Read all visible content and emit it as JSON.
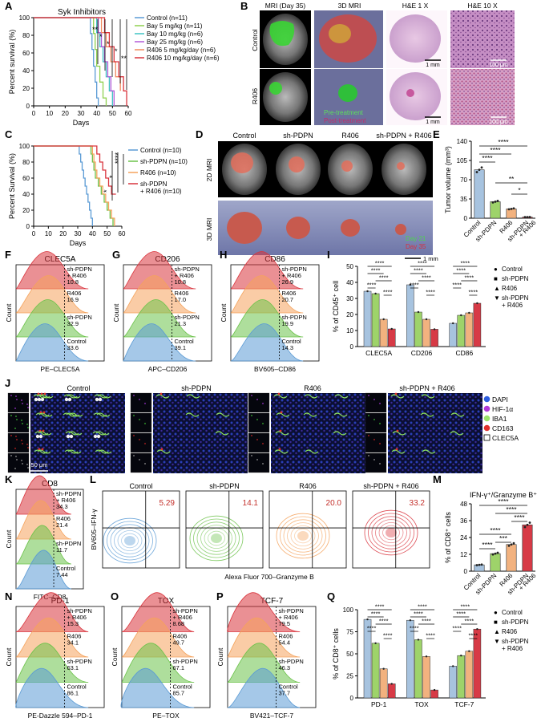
{
  "panels": {
    "A": "A",
    "B": "B",
    "C": "C",
    "D": "D",
    "E": "E",
    "F": "F",
    "G": "G",
    "H": "H",
    "I": "I",
    "J": "J",
    "K": "K",
    "L": "L",
    "M": "M",
    "N": "N",
    "O": "O",
    "P": "P",
    "Q": "Q"
  },
  "colors": {
    "control": "#5b9bd5",
    "sh": "#6cc24a",
    "r406": "#f5a35c",
    "combo": "#d9343d",
    "bay5": "#8fd14f",
    "bay10": "#3fc4c4",
    "bay25": "#b25ad8",
    "r5": "#f08a5d",
    "r10": "#d9343d",
    "bar_control": "#a7c3df",
    "bar_sh": "#9ed36a",
    "bar_r406": "#f2b27f",
    "bar_combo": "#d73a46"
  },
  "B": {
    "cols": [
      "MRI (Day 35)",
      "3D MRI",
      "H&E 1 X",
      "H&E 10 X"
    ],
    "rows": [
      "Control",
      "R406"
    ],
    "legend": [
      "Pre-treatment",
      "Post-treatment"
    ],
    "scale_1mm": "1 mm",
    "scale_100um": "100 μm"
  },
  "D": {
    "cols": [
      "Control",
      "sh-PDPN",
      "R406",
      "sh-PDPN + R406"
    ],
    "rows": [
      "2D MRI",
      "3D MRI"
    ],
    "legend": [
      "Day 21",
      "Day 35"
    ],
    "scale": "1 mm"
  },
  "J": {
    "cols": [
      "Control",
      "sh-PDPN",
      "R406",
      "sh-PDPN + R406"
    ],
    "legend": [
      "DAPI",
      "HIF-1α",
      "IBA1",
      "CD163",
      "CLEC5A"
    ],
    "legend_colors": [
      "#2f5fe0",
      "#b23ad8",
      "#9be36a",
      "#e0302c",
      "#ffffff"
    ],
    "scale": "50 μm"
  },
  "L": {
    "cols": [
      "Control",
      "sh-PDPN",
      "R406",
      "sh-PDPN + R406"
    ],
    "values": [
      "5.29",
      "14.1",
      "20.0",
      "33.2"
    ],
    "ylabel": "BV605–IFN-γ",
    "xlabel": "Alexa Fluor 700–Granzyme B"
  },
  "chart_data": [
    {
      "id": "A",
      "type": "line",
      "title": "Syk Inhibitors",
      "xlabel": "Days",
      "ylabel": "Percent survival (%)",
      "xlim": [
        0,
        60
      ],
      "ylim": [
        0,
        100
      ],
      "xticks": [
        "0",
        "10",
        "20",
        "30",
        "40",
        "50",
        "60"
      ],
      "yticks": [
        "0",
        "20",
        "40",
        "60",
        "80",
        "100"
      ],
      "series": [
        {
          "name": "Control (n=11)",
          "color": "#5b9bd5",
          "points": [
            [
              0,
              100
            ],
            [
              35,
              100
            ],
            [
              36,
              82
            ],
            [
              37,
              64
            ],
            [
              38,
              45
            ],
            [
              39,
              27
            ],
            [
              40,
              9
            ],
            [
              41,
              0
            ]
          ]
        },
        {
          "name": "Bay 5 mg/kg (n=11)",
          "color": "#8fd14f",
          "points": [
            [
              0,
              100
            ],
            [
              37,
              100
            ],
            [
              38,
              82
            ],
            [
              39,
              64
            ],
            [
              40,
              45
            ],
            [
              42,
              27
            ],
            [
              44,
              9
            ],
            [
              46,
              0
            ]
          ]
        },
        {
          "name": "Bay 10 mg/kg (n=6)",
          "color": "#3fc4c4",
          "points": [
            [
              0,
              100
            ],
            [
              38,
              100
            ],
            [
              40,
              83
            ],
            [
              42,
              67
            ],
            [
              44,
              50
            ],
            [
              46,
              33
            ],
            [
              48,
              17
            ],
            [
              50,
              0
            ]
          ]
        },
        {
          "name": "Bay 25 mg/kg (n=6)",
          "color": "#b25ad8",
          "points": [
            [
              0,
              100
            ],
            [
              39,
              100
            ],
            [
              41,
              83
            ],
            [
              43,
              67
            ],
            [
              45,
              50
            ],
            [
              47,
              33
            ],
            [
              49,
              17
            ],
            [
              51,
              0
            ]
          ]
        },
        {
          "name": "R406 5 mg/kg/day (n=6)",
          "color": "#f08a5d",
          "points": [
            [
              0,
              100
            ],
            [
              40,
              100
            ],
            [
              43,
              83
            ],
            [
              46,
              67
            ],
            [
              49,
              50
            ],
            [
              52,
              33
            ],
            [
              55,
              17
            ]
          ]
        },
        {
          "name": "R406 10 mg/kg/day (n=6)",
          "color": "#d9343d",
          "points": [
            [
              0,
              100
            ],
            [
              42,
              100
            ],
            [
              45,
              83
            ],
            [
              48,
              67
            ],
            [
              51,
              50
            ],
            [
              54,
              33
            ],
            [
              57,
              17
            ],
            [
              59,
              0
            ]
          ]
        }
      ],
      "sig": [
        "**",
        "*",
        "*",
        "*",
        "**"
      ]
    },
    {
      "id": "C",
      "type": "line",
      "xlabel": "Days",
      "ylabel": "Percent Survival (%)",
      "xlim": [
        0,
        60
      ],
      "ylim": [
        0,
        100
      ],
      "xticks": [
        "0",
        "10",
        "20",
        "30",
        "40",
        "50",
        "60"
      ],
      "yticks": [
        "0",
        "20",
        "40",
        "60",
        "80",
        "100"
      ],
      "series": [
        {
          "name": "Control (n=10)",
          "color": "#5b9bd5",
          "points": [
            [
              0,
              100
            ],
            [
              30,
              100
            ],
            [
              31,
              90
            ],
            [
              32,
              80
            ],
            [
              33,
              70
            ],
            [
              34,
              60
            ],
            [
              35,
              50
            ],
            [
              36,
              40
            ],
            [
              37,
              30
            ],
            [
              38,
              20
            ],
            [
              39,
              10
            ],
            [
              40,
              0
            ]
          ]
        },
        {
          "name": "sh-PDPN (n=10)",
          "color": "#6cc24a",
          "points": [
            [
              0,
              100
            ],
            [
              38,
              100
            ],
            [
              39,
              90
            ],
            [
              40,
              80
            ],
            [
              41,
              70
            ],
            [
              42,
              60
            ],
            [
              44,
              50
            ],
            [
              46,
              40
            ],
            [
              48,
              30
            ],
            [
              50,
              20
            ],
            [
              52,
              10
            ],
            [
              54,
              0
            ]
          ]
        },
        {
          "name": "R406 (n=10)",
          "color": "#f5a35c",
          "points": [
            [
              0,
              100
            ],
            [
              39,
              100
            ],
            [
              40,
              90
            ],
            [
              41,
              80
            ],
            [
              42,
              70
            ],
            [
              43,
              60
            ],
            [
              45,
              50
            ],
            [
              47,
              40
            ],
            [
              49,
              30
            ],
            [
              51,
              20
            ],
            [
              53,
              10
            ],
            [
              55,
              0
            ]
          ]
        },
        {
          "name": "sh-PDPN + R406 (n=10)",
          "color": "#d9343d",
          "points": [
            [
              0,
              100
            ],
            [
              42,
              100
            ],
            [
              43,
              90
            ],
            [
              45,
              80
            ],
            [
              47,
              70
            ],
            [
              49,
              60
            ],
            [
              51,
              50
            ],
            [
              53,
              40
            ],
            [
              56,
              40
            ]
          ]
        }
      ],
      "sig": [
        "*",
        "*",
        "****"
      ]
    },
    {
      "id": "E",
      "type": "bar",
      "ylabel": "Tumor volume (mm³)",
      "ylim": [
        0,
        140
      ],
      "yticks": [
        "0",
        "35",
        "70",
        "105",
        "140"
      ],
      "categories": [
        "Control",
        "sh-PDPN",
        "R406",
        "sh-PDPN + R406"
      ],
      "values": [
        88,
        30,
        17,
        2
      ],
      "sig": [
        "****",
        "****",
        "****",
        "**",
        "*"
      ]
    },
    {
      "id": "F",
      "type": "area",
      "title": "CLEC5A",
      "xlabel": "PE–CLEC5A",
      "ylabel": "Count",
      "entries": [
        {
          "label": "sh-PDPN + R406",
          "value": "10.8"
        },
        {
          "label": "R406",
          "value": "16.9"
        },
        {
          "label": "sh-PDPN",
          "value": "32.9"
        },
        {
          "label": "Control",
          "value": "33.6"
        }
      ]
    },
    {
      "id": "G",
      "type": "area",
      "title": "CD206",
      "xlabel": "APC–CD206",
      "ylabel": "Count",
      "entries": [
        {
          "label": "sh-PDPN + R406",
          "value": "10.8"
        },
        {
          "label": "R406",
          "value": "17.0"
        },
        {
          "label": "sh-PDPN",
          "value": "21.3"
        },
        {
          "label": "Control",
          "value": "39.1"
        }
      ]
    },
    {
      "id": "H",
      "type": "area",
      "title": "CD86",
      "xlabel": "BV605–CD86",
      "ylabel": "Count",
      "entries": [
        {
          "label": "sh-PDPN + R406",
          "value": "26.9"
        },
        {
          "label": "R406",
          "value": "20.7"
        },
        {
          "label": "sh-PDPN",
          "value": "19.9"
        },
        {
          "label": "Control",
          "value": "14.3"
        }
      ]
    },
    {
      "id": "I",
      "type": "bar",
      "ylabel": "% of CD45⁺ cell",
      "ylim": [
        0,
        50
      ],
      "yticks": [
        "0",
        "10",
        "20",
        "30",
        "40",
        "50"
      ],
      "categories": [
        "CLEC5A",
        "CD206",
        "CD86"
      ],
      "series": [
        {
          "name": "Control",
          "values": [
            34.5,
            38.5,
            14.5
          ]
        },
        {
          "name": "sh-PDPN",
          "values": [
            33,
            21.5,
            19.5
          ]
        },
        {
          "name": "R406",
          "values": [
            17,
            17,
            21
          ]
        },
        {
          "name": "sh-PDPN + R406",
          "values": [
            11,
            10.8,
            27
          ]
        }
      ]
    },
    {
      "id": "K",
      "type": "area",
      "title": "CD8",
      "xlabel": "FITC–CD8",
      "ylabel": "Count",
      "entries": [
        {
          "label": "sh-PDPN + R406",
          "value": "34.3"
        },
        {
          "label": "R406",
          "value": "21.4"
        },
        {
          "label": "sh-PDPN",
          "value": "11.7"
        },
        {
          "label": "Control",
          "value": "7.44"
        }
      ]
    },
    {
      "id": "M",
      "type": "bar",
      "title": "IFN-γ⁺/Granzyme B⁺",
      "ylabel": "% of CD8⁺ cells",
      "ylim": [
        0,
        48
      ],
      "yticks": [
        "0",
        "12",
        "24",
        "36",
        "48"
      ],
      "categories": [
        "Control",
        "sh-PDPN",
        "R406",
        "sh-PDPN + R406"
      ],
      "values": [
        4.5,
        12.5,
        19,
        33
      ],
      "sig": [
        "****",
        "****",
        "****",
        "****",
        "***",
        "****"
      ]
    },
    {
      "id": "N",
      "type": "area",
      "title": "PD-1",
      "xlabel": "PE-Dazzle 594–PD-1",
      "ylabel": "Count",
      "entries": [
        {
          "label": "sh-PDPN + R406",
          "value": "15.3"
        },
        {
          "label": "R406",
          "value": "34.1"
        },
        {
          "label": "sh-PDPN",
          "value": "63.1"
        },
        {
          "label": "Control",
          "value": "86.1"
        }
      ]
    },
    {
      "id": "O",
      "type": "area",
      "title": "TOX",
      "xlabel": "PE–TOX",
      "ylabel": "Count",
      "entries": [
        {
          "label": "sh-PDPN + R406",
          "value": "8.68"
        },
        {
          "label": "R406",
          "value": "49.7"
        },
        {
          "label": "sh-PDPN",
          "value": "67.1"
        },
        {
          "label": "Control",
          "value": "85.7"
        }
      ]
    },
    {
      "id": "P",
      "type": "area",
      "title": "TCF-7",
      "xlabel": "BV421–TCF-7",
      "ylabel": "Count",
      "entries": [
        {
          "label": "sh-PDPN + R406",
          "value": "79.5"
        },
        {
          "label": "R406",
          "value": "54.4"
        },
        {
          "label": "sh-PDPN",
          "value": "46.3"
        },
        {
          "label": "Control",
          "value": "37.7"
        }
      ]
    },
    {
      "id": "Q",
      "type": "bar",
      "ylabel": "% of CD8⁺ cells",
      "ylim": [
        0,
        100
      ],
      "yticks": [
        "0",
        "25",
        "50",
        "75",
        "100"
      ],
      "categories": [
        "PD-1",
        "TOX",
        "TCF-7"
      ],
      "series": [
        {
          "name": "Control",
          "values": [
            89,
            88,
            36
          ]
        },
        {
          "name": "sh-PDPN",
          "values": [
            62,
            66,
            48
          ]
        },
        {
          "name": "R406",
          "values": [
            33,
            47,
            53
          ]
        },
        {
          "name": "sh-PDPN + R406",
          "values": [
            16,
            9,
            78
          ]
        }
      ]
    }
  ],
  "sig_labels": {
    "four": "****",
    "three": "***",
    "two": "**",
    "one": "*"
  }
}
